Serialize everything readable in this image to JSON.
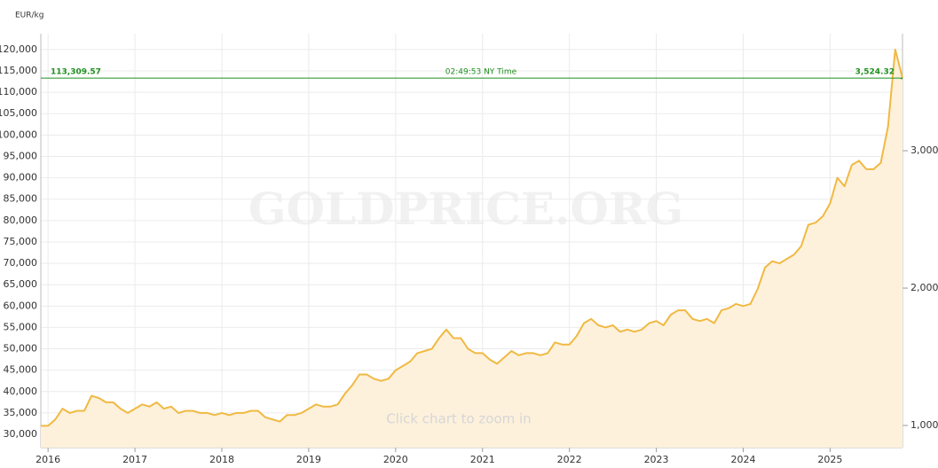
{
  "chart_data": {
    "type": "line",
    "y_axis_label": "EUR/kg",
    "watermark": "GOLDPRICE.ORG",
    "zoom_hint": "Click chart to zoom in",
    "timestamp": "02:49:53 NY Time",
    "current_price": {
      "value": 113309.57,
      "label": "113,309.57"
    },
    "current_price_y2": {
      "value": 3524.32,
      "label": "3,524.32"
    },
    "current_price_color": "#1f8f1f",
    "categories": [
      null,
      "2016",
      null,
      null,
      null,
      null,
      null,
      null,
      null,
      null,
      null,
      null,
      null,
      "2017",
      null,
      null,
      null,
      null,
      null,
      null,
      null,
      null,
      null,
      null,
      null,
      "2018",
      null,
      null,
      null,
      null,
      null,
      null,
      null,
      null,
      null,
      null,
      null,
      "2019",
      null,
      null,
      null,
      null,
      null,
      null,
      null,
      null,
      null,
      null,
      null,
      "2020",
      null,
      null,
      null,
      null,
      null,
      null,
      null,
      null,
      null,
      null,
      null,
      "2021",
      null,
      null,
      null,
      null,
      null,
      null,
      null,
      null,
      null,
      null,
      null,
      "2022",
      null,
      null,
      null,
      null,
      null,
      null,
      null,
      null,
      null,
      null,
      null,
      "2023",
      null,
      null,
      null,
      null,
      null,
      null,
      null,
      null,
      null,
      null,
      null,
      "2024",
      null,
      null,
      null,
      null,
      null,
      null,
      null,
      null,
      null,
      null,
      null,
      "2025",
      null,
      null,
      null,
      null,
      null,
      null,
      null,
      null,
      null,
      null
    ],
    "series": [
      {
        "color": "#f0b942",
        "fill": "#fdf1dc",
        "values": [
          32000,
          32000,
          33500,
          36000,
          35000,
          35500,
          35500,
          39000,
          38500,
          37500,
          37500,
          36000,
          35000,
          36000,
          37000,
          36500,
          37500,
          36000,
          36500,
          35000,
          35500,
          35500,
          35000,
          35000,
          34500,
          35000,
          34500,
          35000,
          35000,
          35500,
          35500,
          34000,
          33500,
          33000,
          34500,
          34500,
          35000,
          36000,
          37000,
          36500,
          36500,
          37000,
          39500,
          41500,
          44000,
          44000,
          43000,
          42500,
          43000,
          45000,
          46000,
          47000,
          49000,
          49500,
          50000,
          52500,
          54500,
          52500,
          52500,
          50000,
          49000,
          49000,
          47500,
          46500,
          48000,
          49500,
          48500,
          49000,
          49000,
          48500,
          49000,
          51500,
          51000,
          51000,
          53000,
          56000,
          57000,
          55500,
          55000,
          55500,
          54000,
          54500,
          54000,
          54500,
          56000,
          56500,
          55500,
          58000,
          59000,
          59000,
          57000,
          56500,
          57000,
          56000,
          59000,
          59500,
          60500,
          60000,
          60500,
          64000,
          69000,
          70500,
          70000,
          71000,
          72000,
          74000,
          79000,
          79500,
          81000,
          84000,
          90000,
          88000,
          93000,
          94000,
          92000,
          92000,
          93500,
          102000,
          120000,
          113309.57
        ]
      }
    ],
    "ylim": [
      26900,
      123700
    ],
    "yticks": [
      {
        "value": 30000,
        "label": "30,000"
      },
      {
        "value": 35000,
        "label": "35,000"
      },
      {
        "value": 40000,
        "label": "40,000"
      },
      {
        "value": 45000,
        "label": "45,000"
      },
      {
        "value": 50000,
        "label": "50,000"
      },
      {
        "value": 55000,
        "label": "55,000"
      },
      {
        "value": 60000,
        "label": "60,000"
      },
      {
        "value": 65000,
        "label": "65,000"
      },
      {
        "value": 70000,
        "label": "70,000"
      },
      {
        "value": 75000,
        "label": "75,000"
      },
      {
        "value": 80000,
        "label": "80,000"
      },
      {
        "value": 85000,
        "label": "85,000"
      },
      {
        "value": 90000,
        "label": "90,000"
      },
      {
        "value": 95000,
        "label": "95,000"
      },
      {
        "value": 100000,
        "label": "100,000"
      },
      {
        "value": 105000,
        "label": "105,000"
      },
      {
        "value": 110000,
        "label": "110,000"
      },
      {
        "value": 115000,
        "label": "115,000"
      },
      {
        "value": 120000,
        "label": "120,000"
      }
    ],
    "y2lim": [
      839,
      3852
    ],
    "y2ticks": [
      {
        "value": 1000,
        "label": "1,000"
      },
      {
        "value": 2000,
        "label": "2,000"
      },
      {
        "value": 3000,
        "label": "3,000"
      }
    ],
    "grid": true
  }
}
